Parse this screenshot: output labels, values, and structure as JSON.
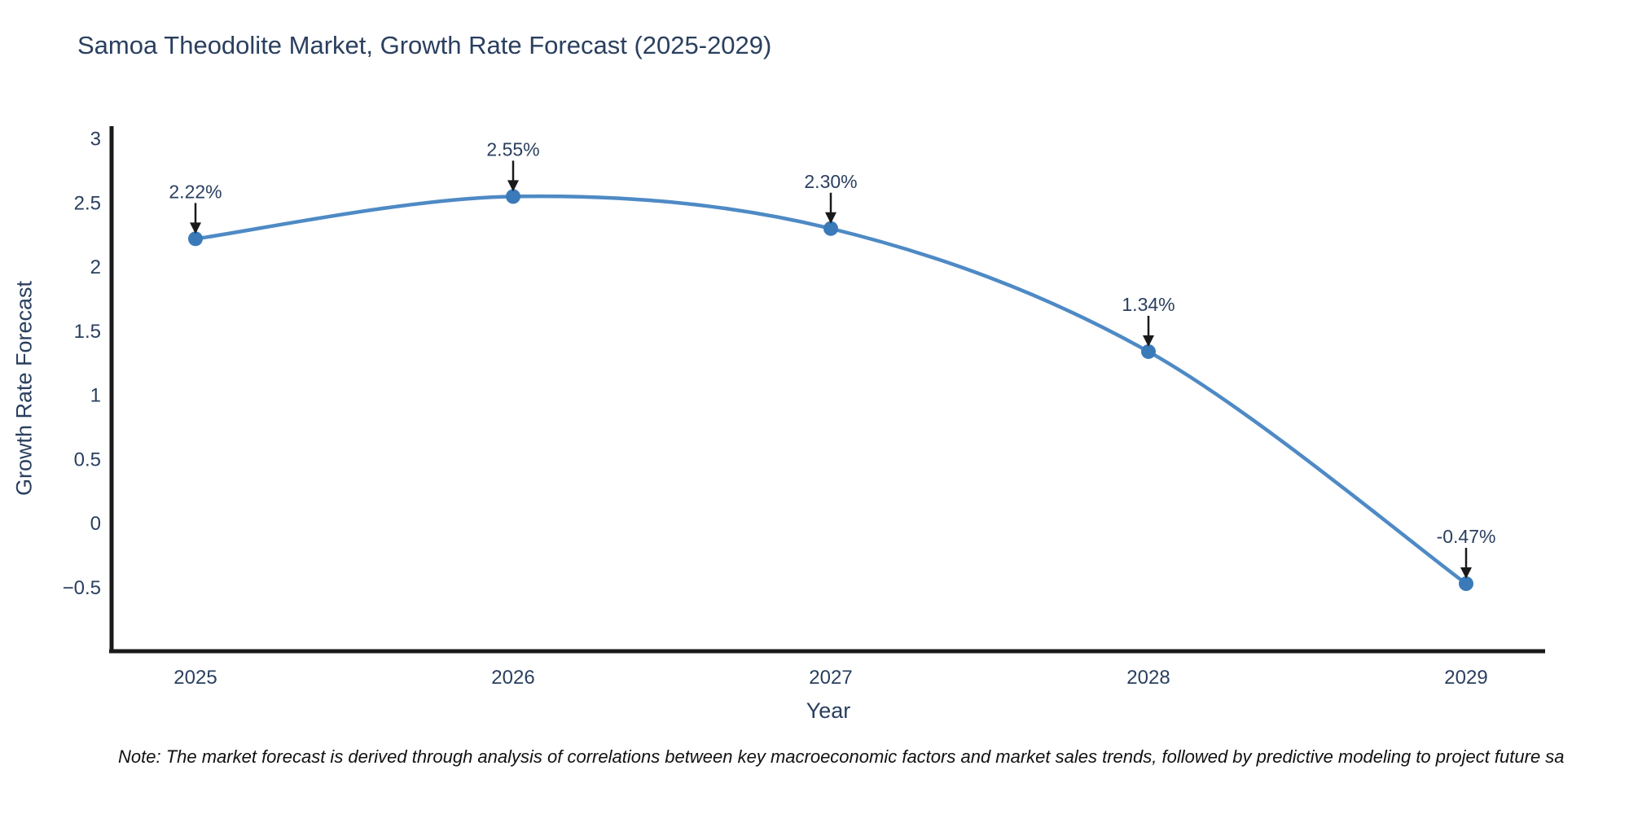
{
  "chart_data": {
    "type": "line",
    "title": "Samoa Theodolite Market, Growth Rate Forecast (2025-2029)",
    "xlabel": "Year",
    "ylabel": "Growth Rate Forecast",
    "x": [
      2025,
      2026,
      2027,
      2028,
      2029
    ],
    "values": [
      2.22,
      2.55,
      2.3,
      1.34,
      -0.47
    ],
    "point_labels": [
      "2.22%",
      "2.55%",
      "2.30%",
      "1.34%",
      "-0.47%"
    ],
    "x_tick_labels": [
      "2025",
      "2026",
      "2027",
      "2028",
      "2029"
    ],
    "y_tick_labels": [
      "3",
      "2.5",
      "2",
      "1.5",
      "1",
      "0.5",
      "0",
      "−0.5"
    ],
    "y_tick_values": [
      3,
      2.5,
      2,
      1.5,
      1,
      0.5,
      0,
      -0.5
    ],
    "ylim": [
      -1.0,
      3.2
    ],
    "line_shape": "spline",
    "grid": false,
    "legend": "none",
    "colors": {
      "line": "#4e8ac5",
      "marker": "#3a7ab9",
      "axis": "#1a1a1a",
      "title_text": "#2a3f5f",
      "tick_text": "#2a3f5f",
      "annotation_text": "#2a3f5f",
      "arrow": "#1a1a1a"
    },
    "note": "Note: The market forecast is derived through analysis of correlations between key macroeconomic factors and market sales trends, followed by predictive modeling to project future sa"
  }
}
